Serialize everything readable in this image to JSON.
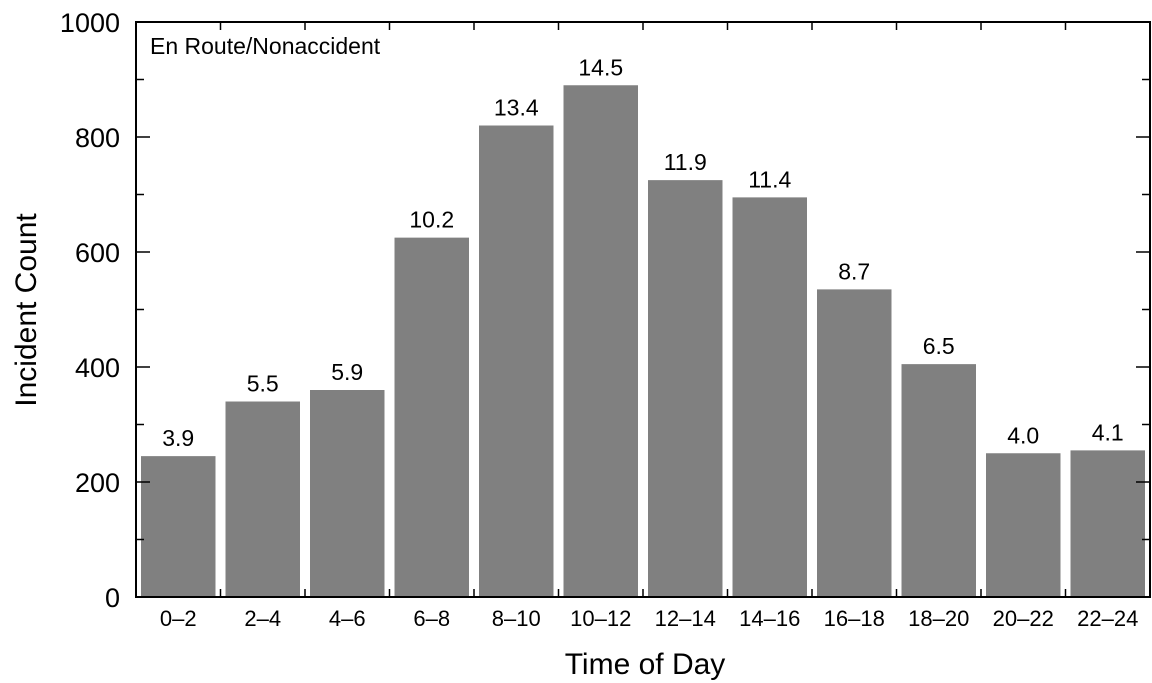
{
  "chart_data": {
    "type": "bar",
    "annotation": "En Route/Nonaccident",
    "xlabel": "Time of Day",
    "ylabel": "Incident Count",
    "ylim": [
      0,
      1000
    ],
    "yticks": [
      0,
      200,
      400,
      600,
      800,
      1000
    ],
    "grid": false,
    "categories": [
      "0–2",
      "2–4",
      "4–6",
      "6–8",
      "8–10",
      "10–12",
      "12–14",
      "14–16",
      "16–18",
      "18–20",
      "20–22",
      "22–24"
    ],
    "values": [
      245,
      340,
      360,
      625,
      820,
      890,
      725,
      695,
      535,
      405,
      250,
      255
    ],
    "data_labels": [
      "3.9",
      "5.5",
      "5.9",
      "10.2",
      "13.4",
      "14.5",
      "11.9",
      "11.4",
      "8.7",
      "6.5",
      "4.0",
      "4.1"
    ],
    "colors": {
      "bar": "#808080",
      "axis": "#000000"
    }
  }
}
